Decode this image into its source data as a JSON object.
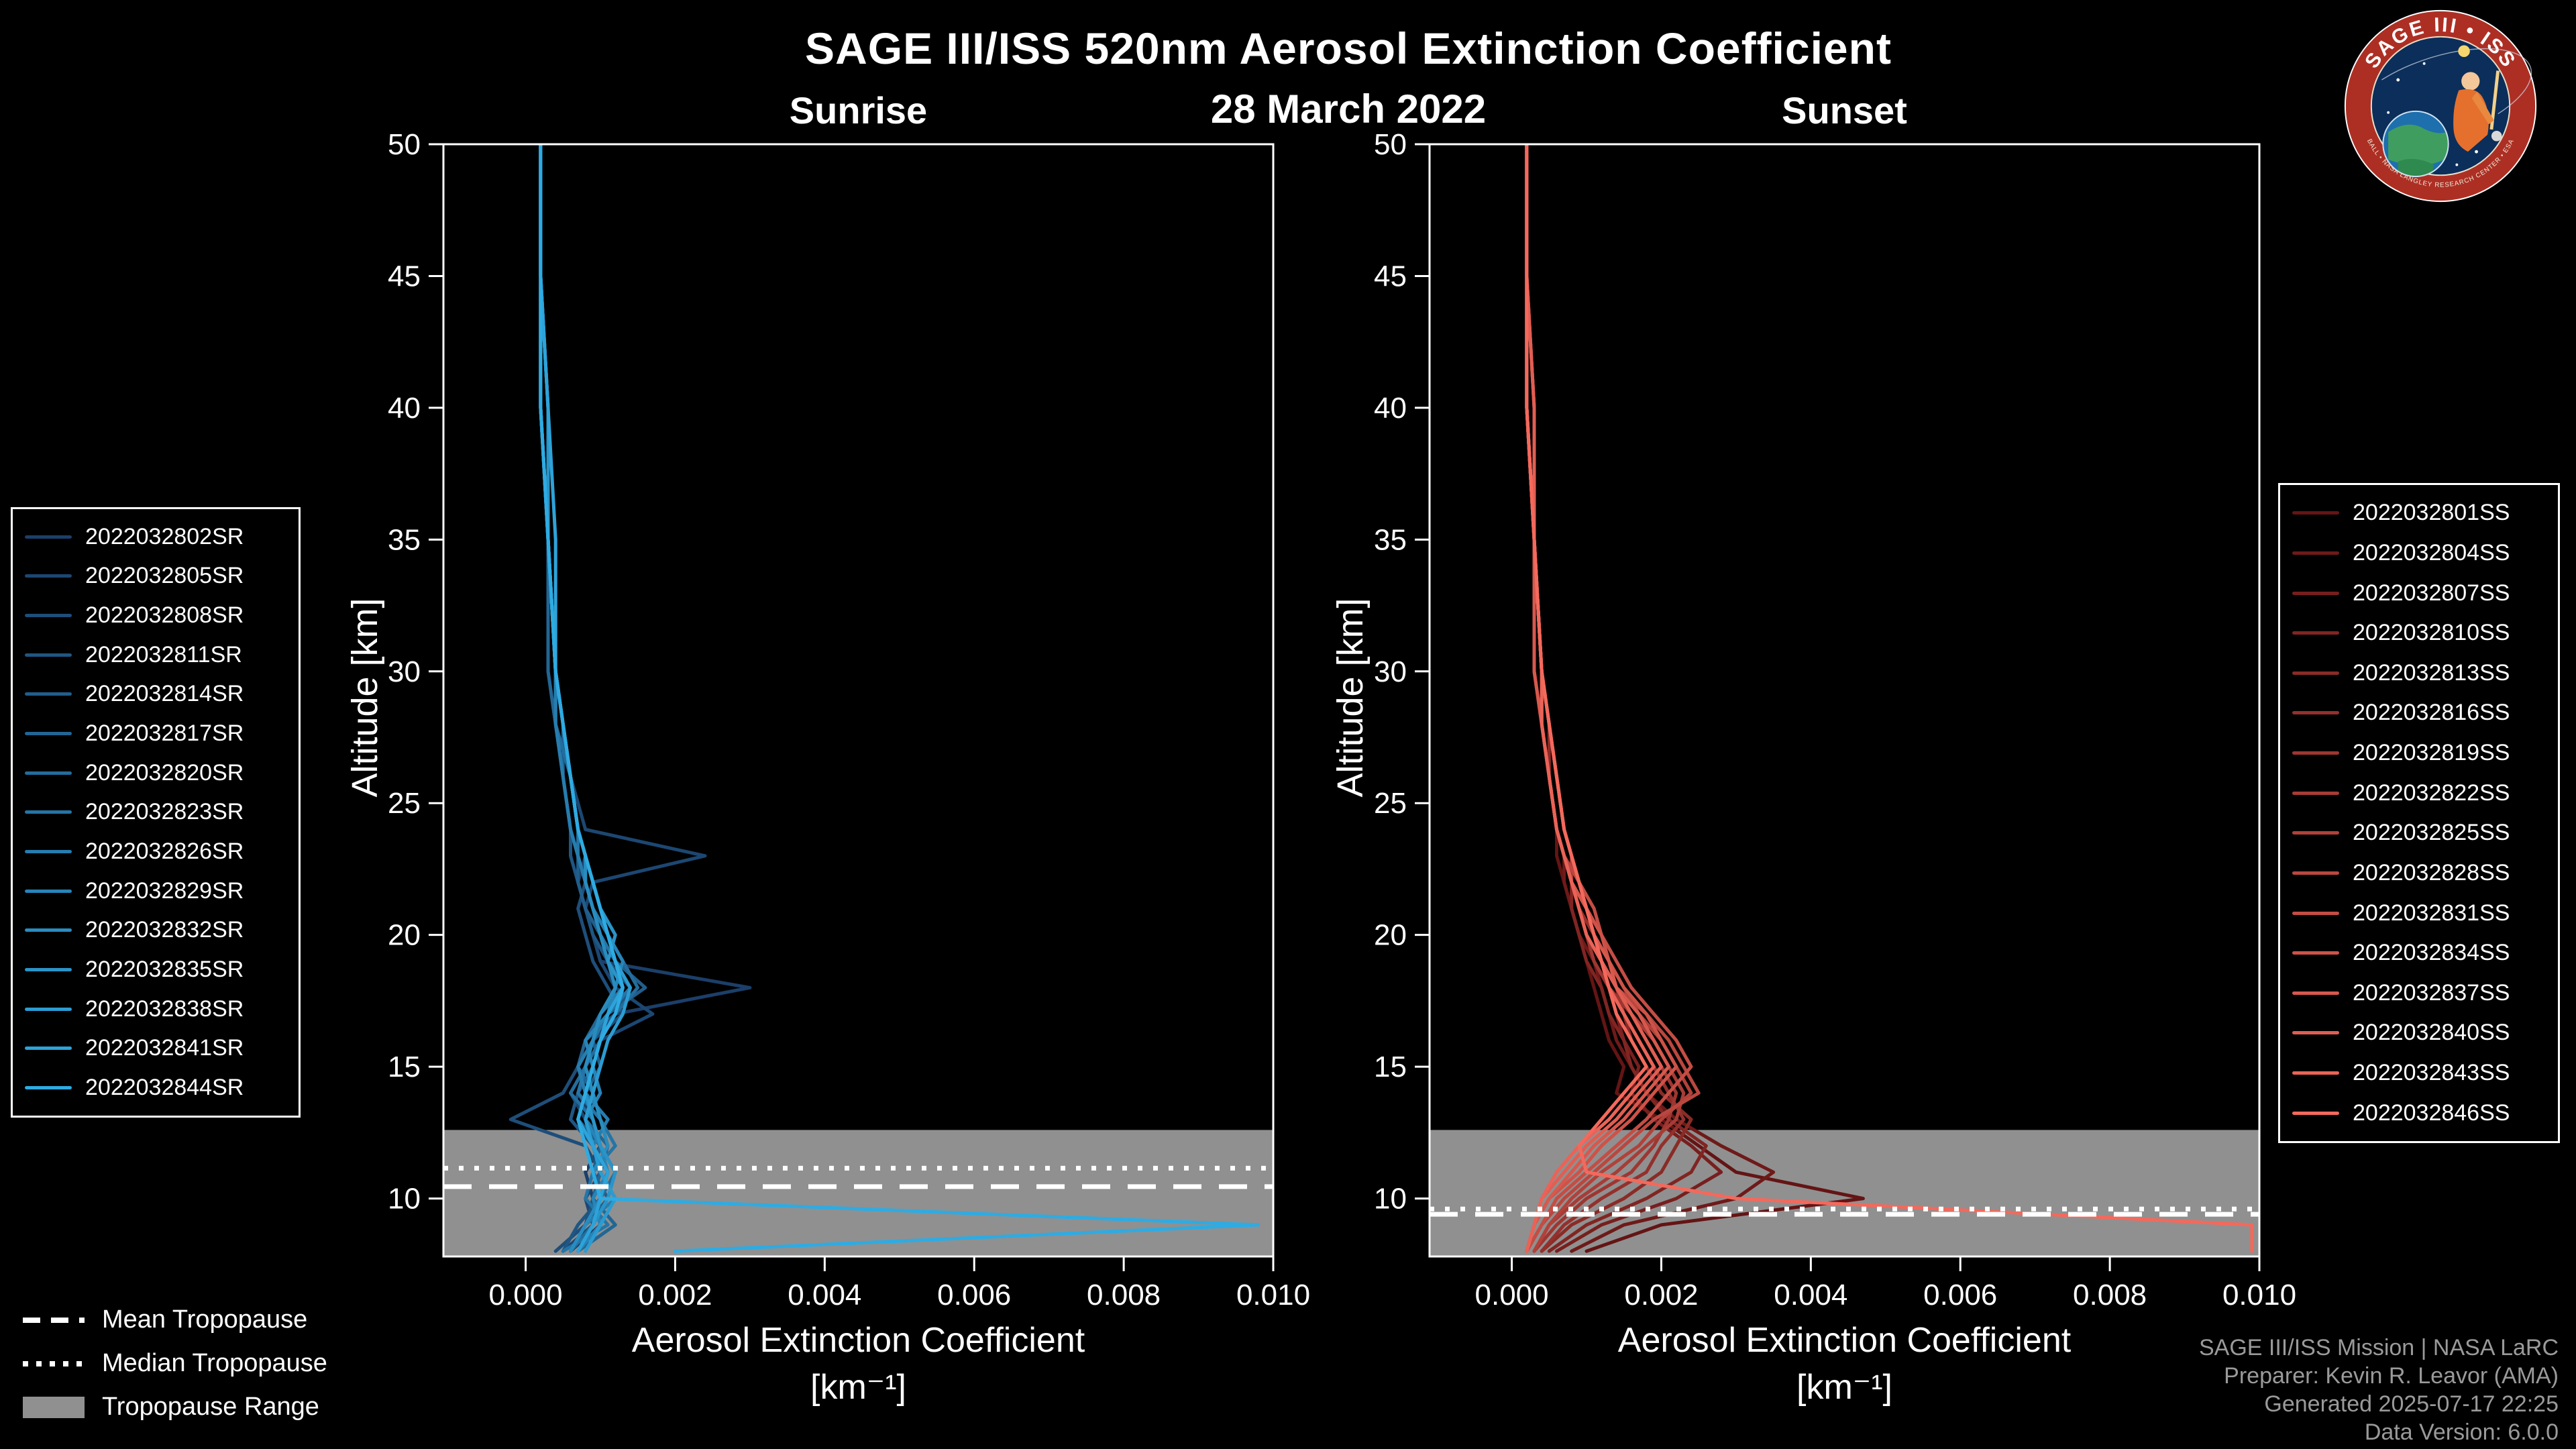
{
  "title": "SAGE III/ISS 520nm Aerosol Extinction Coefficient",
  "date": "28 March 2022",
  "panels": {
    "sunrise_label": "Sunrise",
    "sunset_label": "Sunset"
  },
  "axes": {
    "y_label": "Altitude [km]",
    "x_label": "Aerosol Extinction Coefficient",
    "x_units": "[km⁻¹]"
  },
  "tropopause_legend": {
    "mean": "Mean Tropopause",
    "median": "Median Tropopause",
    "range": "Tropopause Range"
  },
  "credits": {
    "line1": "SAGE III/ISS Mission | NASA LaRC",
    "line2": "Preparer: Kevin R. Leavor (AMA)",
    "line3": "Generated 2025-07-17 22:25",
    "line4": "Data Version: 6.0.0"
  },
  "logo": {
    "title": "SAGE III • ISS",
    "ring_text": "BALL • NASA LANGLEY RESEARCH CENTER • ESA",
    "ring_color": "#ad2f24",
    "inner_color": "#0c2e5a"
  },
  "colors": {
    "background": "#000000",
    "band": "#909090",
    "axis": "#ffffff"
  },
  "chart_data": [
    {
      "type": "line",
      "title": "Sunrise",
      "xlabel": "Aerosol Extinction Coefficient [km⁻¹]",
      "ylabel": "Altitude [km]",
      "xlim": [
        -0.0011,
        0.01
      ],
      "ylim": [
        7.8,
        50
      ],
      "x_ticks": [
        0,
        0.002,
        0.004,
        0.006,
        0.008,
        0.01
      ],
      "x_tick_labels": [
        "0.000",
        "0.002",
        "0.004",
        "0.006",
        "0.008",
        "0.010"
      ],
      "y_ticks": [
        10,
        15,
        20,
        25,
        30,
        35,
        40,
        45,
        50
      ],
      "legend_position": "outside-left",
      "grid": false,
      "band_color": "#909090",
      "mean_tropopause_km": 10.45,
      "median_tropopause_km": 11.15,
      "tropopause_range_km": [
        7.8,
        12.6
      ],
      "value_scale": 0.0001,
      "altitude_km": [
        50,
        45,
        40,
        35,
        30,
        28,
        26,
        24,
        23,
        22,
        21,
        20,
        19,
        18,
        17,
        16,
        15,
        14,
        13,
        12,
        11,
        10,
        9,
        8
      ],
      "series": [
        {
          "name": "2022032802SR",
          "color": "#1b3f69",
          "values": [
            2,
            2,
            2,
            3,
            4,
            5,
            6,
            7,
            8,
            7,
            8,
            9,
            10,
            30,
            12,
            9,
            8,
            7,
            9,
            10,
            8,
            9,
            10,
            6
          ]
        },
        {
          "name": "2022032805SR",
          "color": "#1c4772",
          "values": [
            2,
            2,
            2,
            3,
            4,
            5,
            6,
            8,
            24,
            9,
            8,
            9,
            10,
            12,
            17,
            10,
            8,
            6,
            8,
            9,
            10,
            8,
            9,
            5
          ]
        },
        {
          "name": "2022032808SR",
          "color": "#1e4e7a",
          "values": [
            2,
            2,
            2,
            3,
            3,
            4,
            5,
            6,
            7,
            8,
            7,
            8,
            9,
            11,
            13,
            9,
            7,
            5,
            -2,
            8,
            10,
            9,
            8,
            4
          ]
        },
        {
          "name": "2022032811SR",
          "color": "#1f5683",
          "values": [
            2,
            2,
            3,
            3,
            4,
            4,
            5,
            6,
            6,
            7,
            8,
            9,
            11,
            14,
            12,
            8,
            9,
            7,
            6,
            9,
            11,
            10,
            7,
            5
          ]
        },
        {
          "name": "2022032814SR",
          "color": "#205e8c",
          "values": [
            2,
            2,
            2,
            3,
            4,
            5,
            5,
            6,
            7,
            7,
            8,
            10,
            12,
            16,
            11,
            9,
            10,
            8,
            7,
            10,
            9,
            11,
            8,
            6
          ]
        },
        {
          "name": "2022032817SR",
          "color": "#226694",
          "values": [
            2,
            2,
            2,
            3,
            3,
            4,
            5,
            6,
            7,
            8,
            9,
            10,
            11,
            13,
            10,
            8,
            7,
            9,
            8,
            11,
            10,
            9,
            12,
            7
          ]
        },
        {
          "name": "2022032820SR",
          "color": "#236d9d",
          "values": [
            2,
            2,
            3,
            3,
            4,
            4,
            6,
            7,
            8,
            8,
            9,
            11,
            13,
            15,
            12,
            10,
            8,
            6,
            9,
            10,
            12,
            10,
            9,
            6
          ]
        },
        {
          "name": "2022032823SR",
          "color": "#2575a6",
          "values": [
            2,
            2,
            2,
            3,
            4,
            5,
            6,
            7,
            7,
            8,
            9,
            10,
            12,
            14,
            11,
            9,
            8,
            7,
            10,
            12,
            9,
            8,
            11,
            5
          ]
        },
        {
          "name": "2022032826SR",
          "color": "#267dae",
          "values": [
            2,
            2,
            2,
            3,
            4,
            4,
            5,
            6,
            7,
            8,
            9,
            11,
            12,
            13,
            10,
            9,
            7,
            8,
            11,
            9,
            10,
            12,
            8,
            6
          ]
        },
        {
          "name": "2022032829SR",
          "color": "#2784b7",
          "values": [
            2,
            2,
            3,
            3,
            4,
            5,
            6,
            7,
            8,
            9,
            10,
            11,
            13,
            12,
            11,
            8,
            9,
            10,
            8,
            10,
            11,
            9,
            10,
            7
          ]
        },
        {
          "name": "2022032832SR",
          "color": "#298cbf",
          "values": [
            2,
            2,
            2,
            3,
            4,
            5,
            6,
            7,
            8,
            8,
            9,
            10,
            11,
            12,
            10,
            9,
            8,
            9,
            10,
            11,
            9,
            10,
            8,
            6
          ]
        },
        {
          "name": "2022032835SR",
          "color": "#2a94c8",
          "values": [
            2,
            2,
            3,
            3,
            4,
            5,
            6,
            7,
            8,
            9,
            10,
            12,
            11,
            13,
            12,
            10,
            9,
            8,
            9,
            10,
            12,
            11,
            9,
            7
          ]
        },
        {
          "name": "2022032838SR",
          "color": "#2b9cd1",
          "values": [
            2,
            2,
            2,
            3,
            4,
            5,
            6,
            7,
            8,
            9,
            10,
            11,
            12,
            14,
            13,
            11,
            10,
            9,
            8,
            9,
            10,
            12,
            10,
            8
          ]
        },
        {
          "name": "2022032841SR",
          "color": "#2da3d9",
          "values": [
            2,
            2,
            3,
            4,
            4,
            5,
            6,
            7,
            8,
            9,
            10,
            11,
            12,
            13,
            11,
            10,
            9,
            8,
            7,
            9,
            11,
            10,
            9,
            7
          ]
        },
        {
          "name": "2022032844SR",
          "color": "#2eabe2",
          "values": [
            2,
            2,
            2,
            3,
            4,
            5,
            6,
            7,
            8,
            9,
            10,
            11,
            12,
            13,
            12,
            10,
            9,
            8,
            7,
            8,
            9,
            10,
            98,
            20
          ]
        }
      ]
    },
    {
      "type": "line",
      "title": "Sunset",
      "xlabel": "Aerosol Extinction Coefficient [km⁻¹]",
      "ylabel": "Altitude [km]",
      "xlim": [
        -0.0011,
        0.01
      ],
      "ylim": [
        7.8,
        50
      ],
      "x_ticks": [
        0,
        0.002,
        0.004,
        0.006,
        0.008,
        0.01
      ],
      "x_tick_labels": [
        "0.000",
        "0.002",
        "0.004",
        "0.006",
        "0.008",
        "0.010"
      ],
      "y_ticks": [
        10,
        15,
        20,
        25,
        30,
        35,
        40,
        45,
        50
      ],
      "legend_position": "outside-right",
      "grid": false,
      "band_color": "#909090",
      "mean_tropopause_km": 9.4,
      "median_tropopause_km": 9.6,
      "tropopause_range_km": [
        7.8,
        12.6
      ],
      "value_scale": 0.0001,
      "altitude_km": [
        50,
        45,
        40,
        35,
        30,
        28,
        26,
        24,
        23,
        22,
        21,
        20,
        19,
        18,
        17,
        16,
        15,
        14,
        13,
        12,
        11,
        10,
        9,
        8
      ],
      "series": [
        {
          "name": "2022032801SS",
          "color": "#641414",
          "values": [
            2,
            2,
            2,
            3,
            4,
            4,
            5,
            6,
            6,
            7,
            8,
            9,
            10,
            11,
            12,
            13,
            15,
            14,
            20,
            25,
            30,
            47,
            20,
            10
          ]
        },
        {
          "name": "2022032804SS",
          "color": "#6e1a19",
          "values": [
            2,
            2,
            2,
            3,
            3,
            4,
            5,
            6,
            7,
            7,
            8,
            9,
            11,
            12,
            13,
            14,
            16,
            18,
            22,
            28,
            35,
            30,
            15,
            8
          ]
        },
        {
          "name": "2022032807SS",
          "color": "#771f1e",
          "values": [
            2,
            2,
            2,
            3,
            4,
            4,
            5,
            6,
            7,
            8,
            9,
            10,
            11,
            13,
            14,
            15,
            17,
            16,
            19,
            24,
            28,
            22,
            12,
            6
          ]
        },
        {
          "name": "2022032810SS",
          "color": "#812522",
          "values": [
            2,
            2,
            2,
            3,
            3,
            4,
            5,
            6,
            7,
            8,
            8,
            9,
            10,
            12,
            13,
            15,
            16,
            18,
            21,
            26,
            24,
            18,
            10,
            5
          ]
        },
        {
          "name": "2022032813SS",
          "color": "#8a2b27",
          "values": [
            2,
            2,
            3,
            3,
            4,
            5,
            5,
            6,
            7,
            8,
            9,
            10,
            12,
            13,
            15,
            16,
            18,
            20,
            24,
            22,
            20,
            15,
            8,
            4
          ]
        },
        {
          "name": "2022032816SS",
          "color": "#94302c",
          "values": [
            2,
            2,
            2,
            3,
            4,
            4,
            5,
            6,
            7,
            8,
            9,
            11,
            12,
            14,
            15,
            17,
            19,
            21,
            23,
            20,
            18,
            12,
            7,
            4
          ]
        },
        {
          "name": "2022032819SS",
          "color": "#9e3631",
          "values": [
            2,
            2,
            2,
            3,
            3,
            4,
            5,
            6,
            7,
            8,
            9,
            10,
            11,
            13,
            16,
            18,
            20,
            22,
            21,
            19,
            16,
            10,
            6,
            3
          ]
        },
        {
          "name": "2022032822SS",
          "color": "#a73c36",
          "values": [
            2,
            2,
            3,
            3,
            4,
            5,
            6,
            7,
            8,
            8,
            10,
            11,
            13,
            14,
            16,
            19,
            21,
            23,
            22,
            18,
            14,
            9,
            5,
            3
          ]
        },
        {
          "name": "2022032825SS",
          "color": "#b1413a",
          "values": [
            2,
            2,
            2,
            3,
            4,
            5,
            6,
            7,
            8,
            9,
            10,
            12,
            13,
            15,
            17,
            20,
            22,
            24,
            20,
            17,
            12,
            8,
            5,
            3
          ]
        },
        {
          "name": "2022032828SS",
          "color": "#ba473f",
          "values": [
            2,
            2,
            2,
            3,
            4,
            4,
            5,
            6,
            7,
            9,
            10,
            11,
            12,
            14,
            18,
            21,
            23,
            25,
            19,
            15,
            11,
            7,
            4,
            2
          ]
        },
        {
          "name": "2022032831SS",
          "color": "#c44d44",
          "values": [
            2,
            2,
            3,
            3,
            4,
            5,
            6,
            7,
            8,
            9,
            11,
            12,
            14,
            16,
            19,
            22,
            24,
            21,
            18,
            14,
            10,
            6,
            4,
            2
          ]
        },
        {
          "name": "2022032834SS",
          "color": "#ce5248",
          "values": [
            2,
            2,
            2,
            3,
            4,
            5,
            6,
            7,
            8,
            9,
            10,
            12,
            13,
            15,
            18,
            20,
            22,
            19,
            16,
            12,
            9,
            5,
            3,
            2
          ]
        },
        {
          "name": "2022032837SS",
          "color": "#d7584d",
          "values": [
            2,
            2,
            2,
            3,
            3,
            4,
            5,
            6,
            7,
            8,
            10,
            11,
            13,
            14,
            17,
            19,
            21,
            18,
            15,
            11,
            8,
            5,
            3,
            2
          ]
        },
        {
          "name": "2022032840SS",
          "color": "#e15e52",
          "values": [
            2,
            2,
            3,
            3,
            4,
            5,
            6,
            7,
            8,
            9,
            10,
            11,
            12,
            14,
            16,
            18,
            20,
            17,
            14,
            10,
            7,
            4,
            3,
            2
          ]
        },
        {
          "name": "2022032843SS",
          "color": "#ea6357",
          "values": [
            2,
            2,
            2,
            3,
            4,
            4,
            5,
            6,
            7,
            8,
            9,
            10,
            12,
            13,
            15,
            17,
            19,
            16,
            13,
            9,
            6,
            4,
            3,
            2
          ]
        },
        {
          "name": "2022032846SS",
          "color": "#f4695c",
          "values": [
            2,
            2,
            2,
            3,
            4,
            5,
            6,
            7,
            8,
            9,
            10,
            11,
            12,
            13,
            14,
            16,
            18,
            15,
            12,
            9,
            10,
            30,
            99,
            99
          ]
        }
      ]
    }
  ]
}
